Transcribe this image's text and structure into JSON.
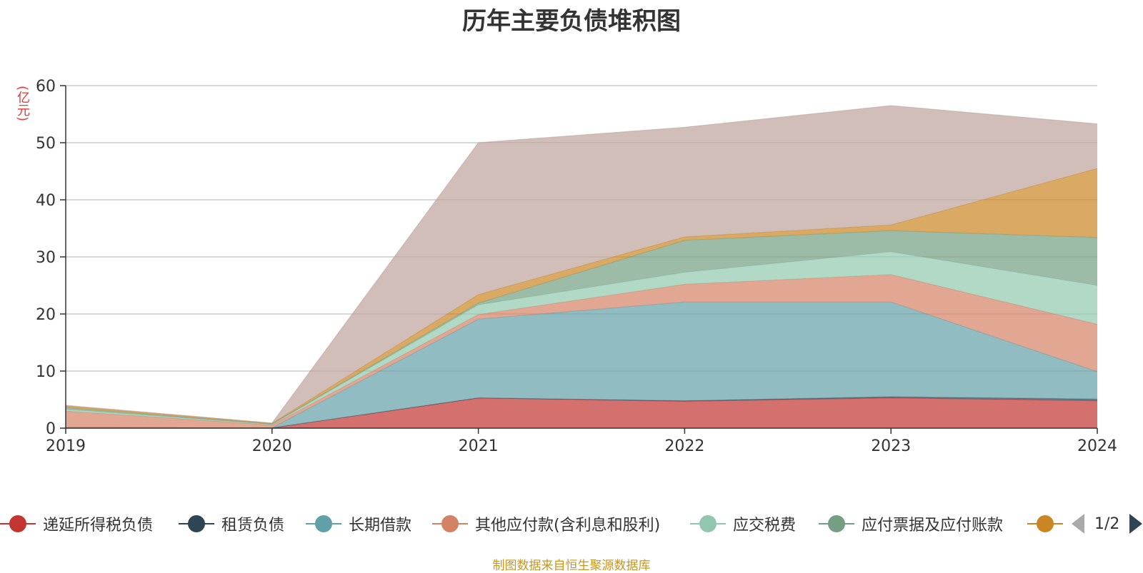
{
  "chart_data": {
    "type": "area",
    "stacked": true,
    "title": "历年主要负债堆积图",
    "unit_label": "(亿元)",
    "categories": [
      "2019",
      "2020",
      "2021",
      "2022",
      "2023",
      "2024"
    ],
    "ylim": [
      0,
      60
    ],
    "yticks": [
      "0",
      "10",
      "20",
      "30",
      "40",
      "50",
      "60"
    ],
    "grid": true,
    "series": [
      {
        "name": "递延所得税负债",
        "color": "#c23531",
        "values": [
          0.1,
          0.05,
          5.3,
          4.7,
          5.3,
          4.8
        ]
      },
      {
        "name": "租赁负债",
        "color": "#2f4554",
        "values": [
          0,
          0,
          0,
          0.1,
          0.2,
          0.3
        ]
      },
      {
        "name": "长期借款",
        "color": "#61a0a8",
        "values": [
          0,
          0,
          13.8,
          17.3,
          16.6,
          4.8
        ]
      },
      {
        "name": "其他应付款(含利息和股利)",
        "color": "#d48265",
        "values": [
          2.9,
          0.5,
          0.8,
          3.1,
          4.8,
          8.3
        ]
      },
      {
        "name": "应交税费",
        "color": "#91c7ae",
        "values": [
          0.3,
          0.1,
          1.7,
          2.1,
          4.0,
          6.8
        ]
      },
      {
        "name": "应付票据及应付账款",
        "color": "#749f83",
        "values": [
          0.3,
          0.1,
          0.3,
          5.6,
          3.7,
          8.4
        ]
      },
      {
        "name": "",
        "color": "#ca8622",
        "values": [
          0.3,
          0.1,
          1.5,
          0.6,
          1.0,
          12.1
        ]
      },
      {
        "name": "",
        "color": "#bda29a",
        "values": [
          0.1,
          0.05,
          26.6,
          19.2,
          20.9,
          7.8
        ]
      }
    ]
  },
  "legend": {
    "items": [
      {
        "name": "递延所得税负债",
        "color": "#c23531"
      },
      {
        "name": "租赁负债",
        "color": "#2f4554"
      },
      {
        "name": "长期借款",
        "color": "#61a0a8"
      },
      {
        "name": "其他应付款(含利息和股利)",
        "color": "#d48265"
      },
      {
        "name": "应交税费",
        "color": "#91c7ae"
      },
      {
        "name": "应付票据及应付账款",
        "color": "#749f83"
      },
      {
        "name": "",
        "color": "#ca8622"
      }
    ],
    "pager_text": "1/2"
  },
  "footer": {
    "source": "制图数据来自恒生聚源数据库"
  }
}
